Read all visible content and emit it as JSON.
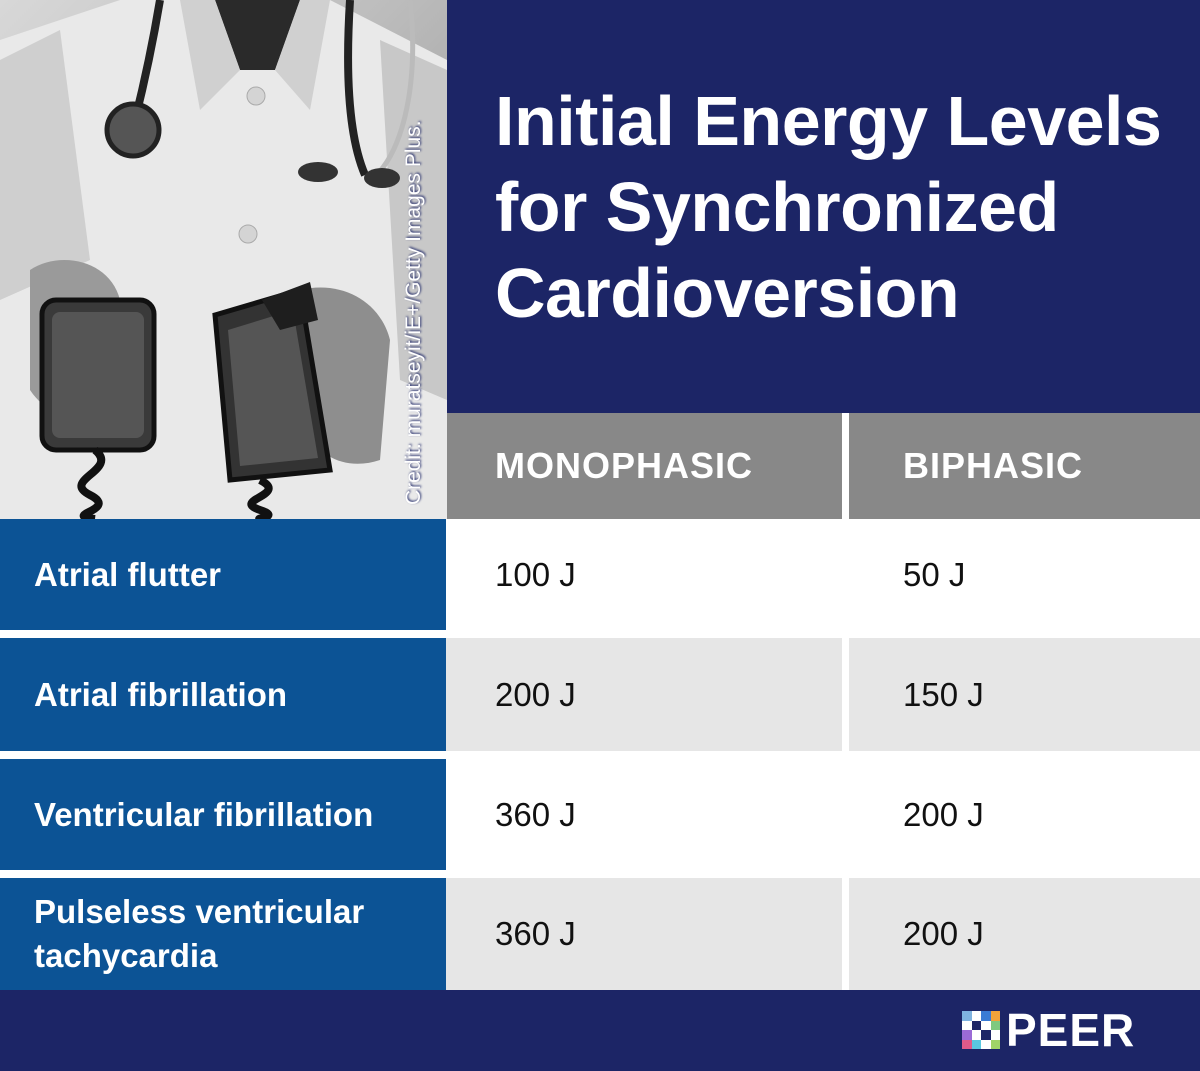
{
  "photo": {
    "credit": "Credit: muratseyit/iE+/Getty Images Plus."
  },
  "title": "Initial Energy Levels for Synchronized Cardioversion",
  "table": {
    "columns": [
      "MONOPHASIC",
      "BIPHASIC"
    ],
    "rows": [
      {
        "label": "Atrial flutter",
        "monophasic": "100 J",
        "biphasic": "50 J"
      },
      {
        "label": "Atrial fibrillation",
        "monophasic": "200 J",
        "biphasic": "150 J"
      },
      {
        "label": "Ventricular fibrillation",
        "monophasic": "360 J",
        "biphasic": "200 J"
      },
      {
        "label": "Pulseless ventricular tachycardia",
        "monophasic": "360 J",
        "biphasic": "200 J"
      }
    ]
  },
  "footer": {
    "logo_text": "PEER"
  },
  "colors": {
    "navy": "#1c2566",
    "row_label_blue": "#0c5395",
    "header_gray": "#888888",
    "alt_row_gray": "#e6e6e6"
  }
}
